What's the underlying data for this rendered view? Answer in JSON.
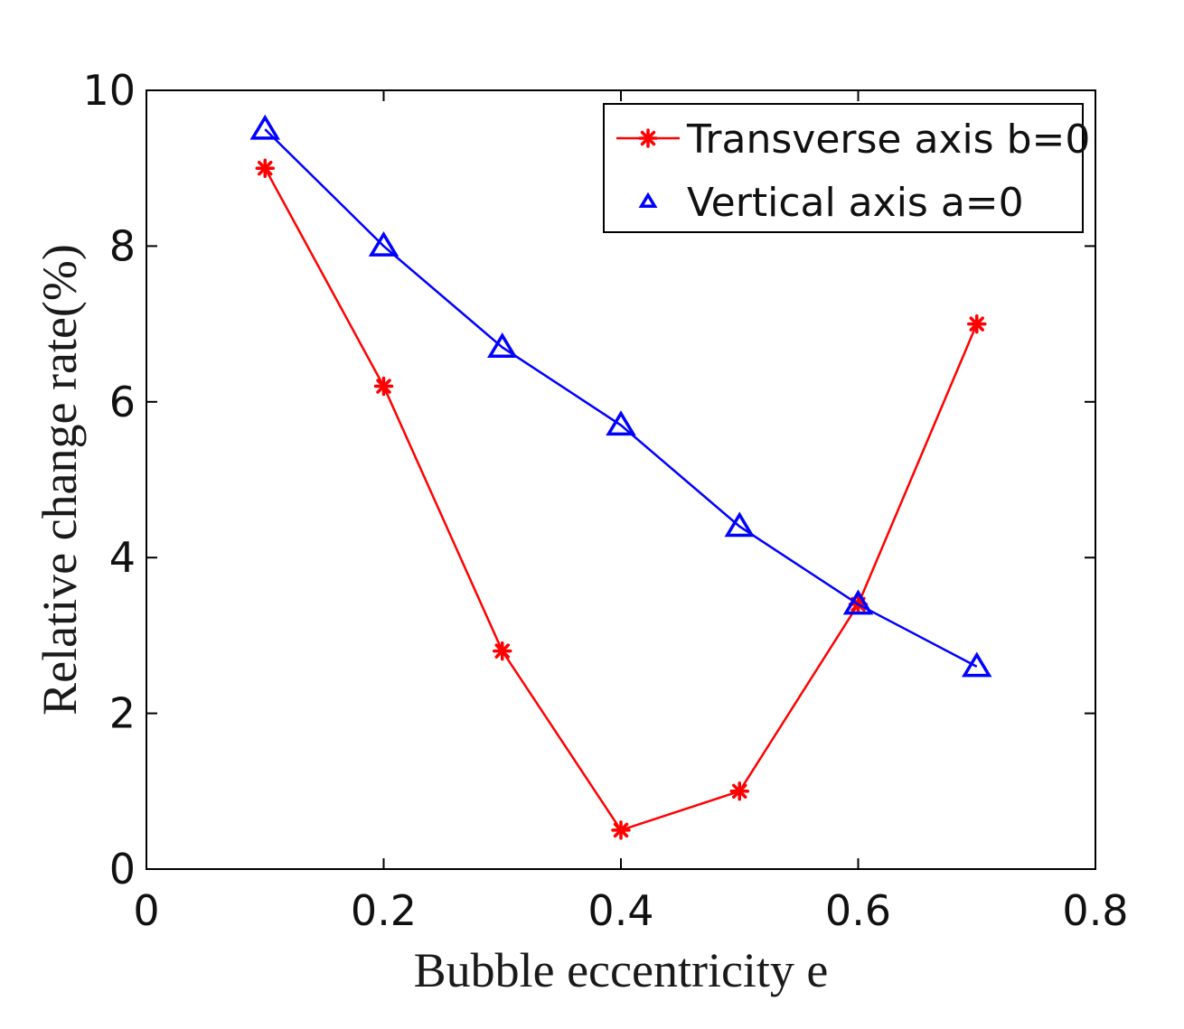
{
  "chart_data": {
    "type": "line",
    "title": "",
    "xlabel": "Bubble eccentricity e",
    "ylabel": "Relative change rate(%)",
    "xlim": [
      0,
      0.8
    ],
    "ylim": [
      0,
      10
    ],
    "xticks": [
      0,
      0.2,
      0.4,
      0.6,
      0.8
    ],
    "xtick_labels": [
      "0",
      "0.2",
      "0.4",
      "0.6",
      "0.8"
    ],
    "yticks": [
      0,
      2,
      4,
      6,
      8,
      10
    ],
    "ytick_labels": [
      "0",
      "2",
      "4",
      "6",
      "8",
      "10"
    ],
    "grid": false,
    "legend_position": "top-right",
    "series": [
      {
        "name": "Transverse axis b=0",
        "color": "#ff0000",
        "marker": "asterisk",
        "x": [
          0.1,
          0.2,
          0.3,
          0.4,
          0.5,
          0.6,
          0.7
        ],
        "y": [
          9.0,
          6.2,
          2.8,
          0.5,
          1.0,
          3.4,
          7.0
        ]
      },
      {
        "name": "Vertical axis a=0",
        "color": "#0000ff",
        "marker": "triangle",
        "x": [
          0.1,
          0.2,
          0.3,
          0.4,
          0.5,
          0.6,
          0.7
        ],
        "y": [
          9.5,
          8.0,
          6.7,
          5.7,
          4.4,
          3.4,
          2.6
        ]
      }
    ]
  }
}
